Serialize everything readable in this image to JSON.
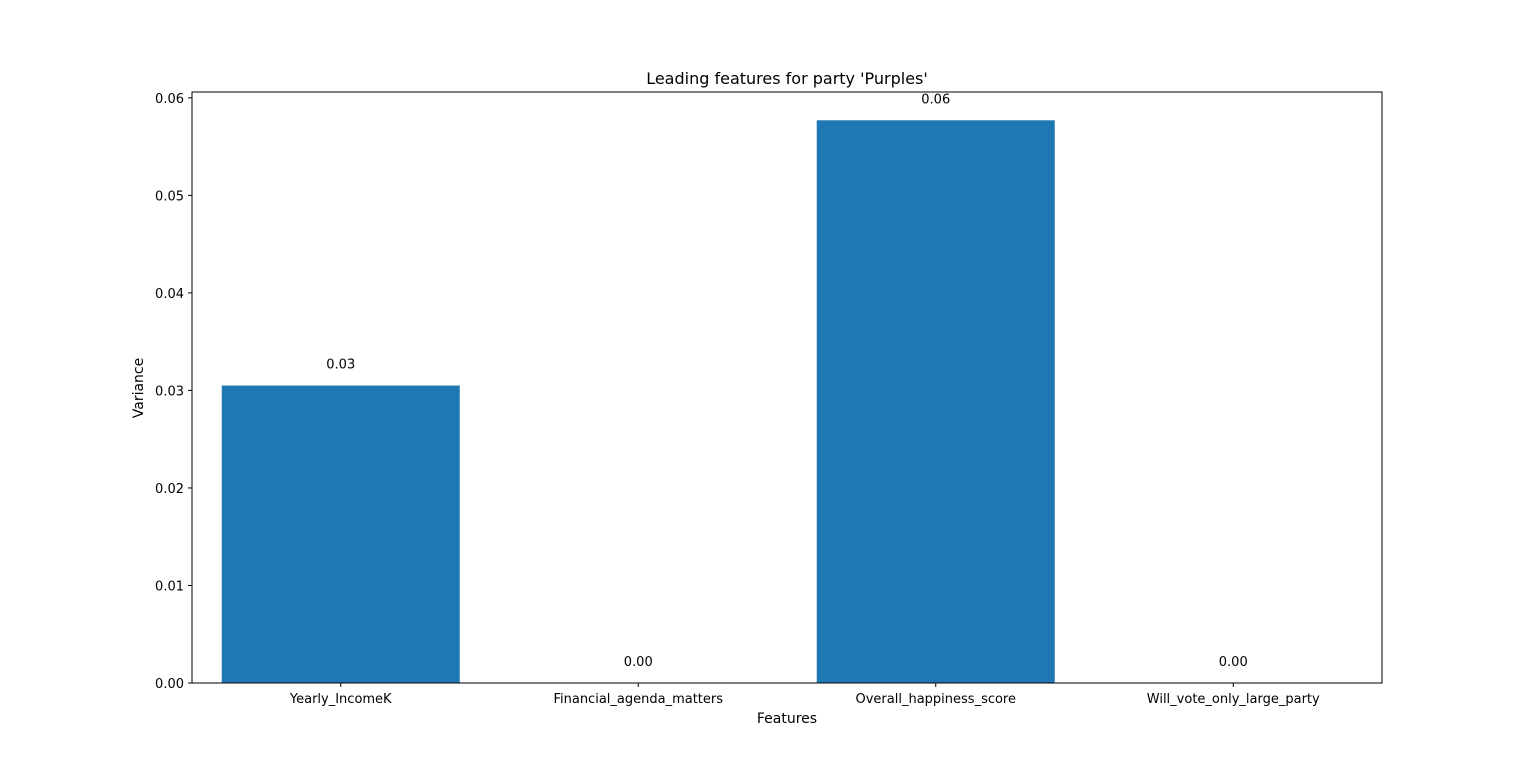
{
  "chart_data": {
    "type": "bar",
    "title": "Leading features for party 'Purples'",
    "xlabel": "Features",
    "ylabel": "Variance",
    "categories": [
      "Yearly_IncomeK",
      "Financial_agenda_matters",
      "Overall_happiness_score",
      "Will_vote_only_large_party"
    ],
    "values": [
      0.0305,
      0.0,
      0.0577,
      0.0
    ],
    "data_labels": [
      "0.03",
      "0.00",
      "0.06",
      "0.00"
    ],
    "ylim": [
      0,
      0.0606
    ],
    "yticks": [
      0.0,
      0.01,
      0.02,
      0.03,
      0.04,
      0.05,
      0.06
    ],
    "ytick_labels": [
      "0.00",
      "0.01",
      "0.02",
      "0.03",
      "0.04",
      "0.05",
      "0.06"
    ],
    "grid": false,
    "bar_color": "#1f77b4"
  }
}
